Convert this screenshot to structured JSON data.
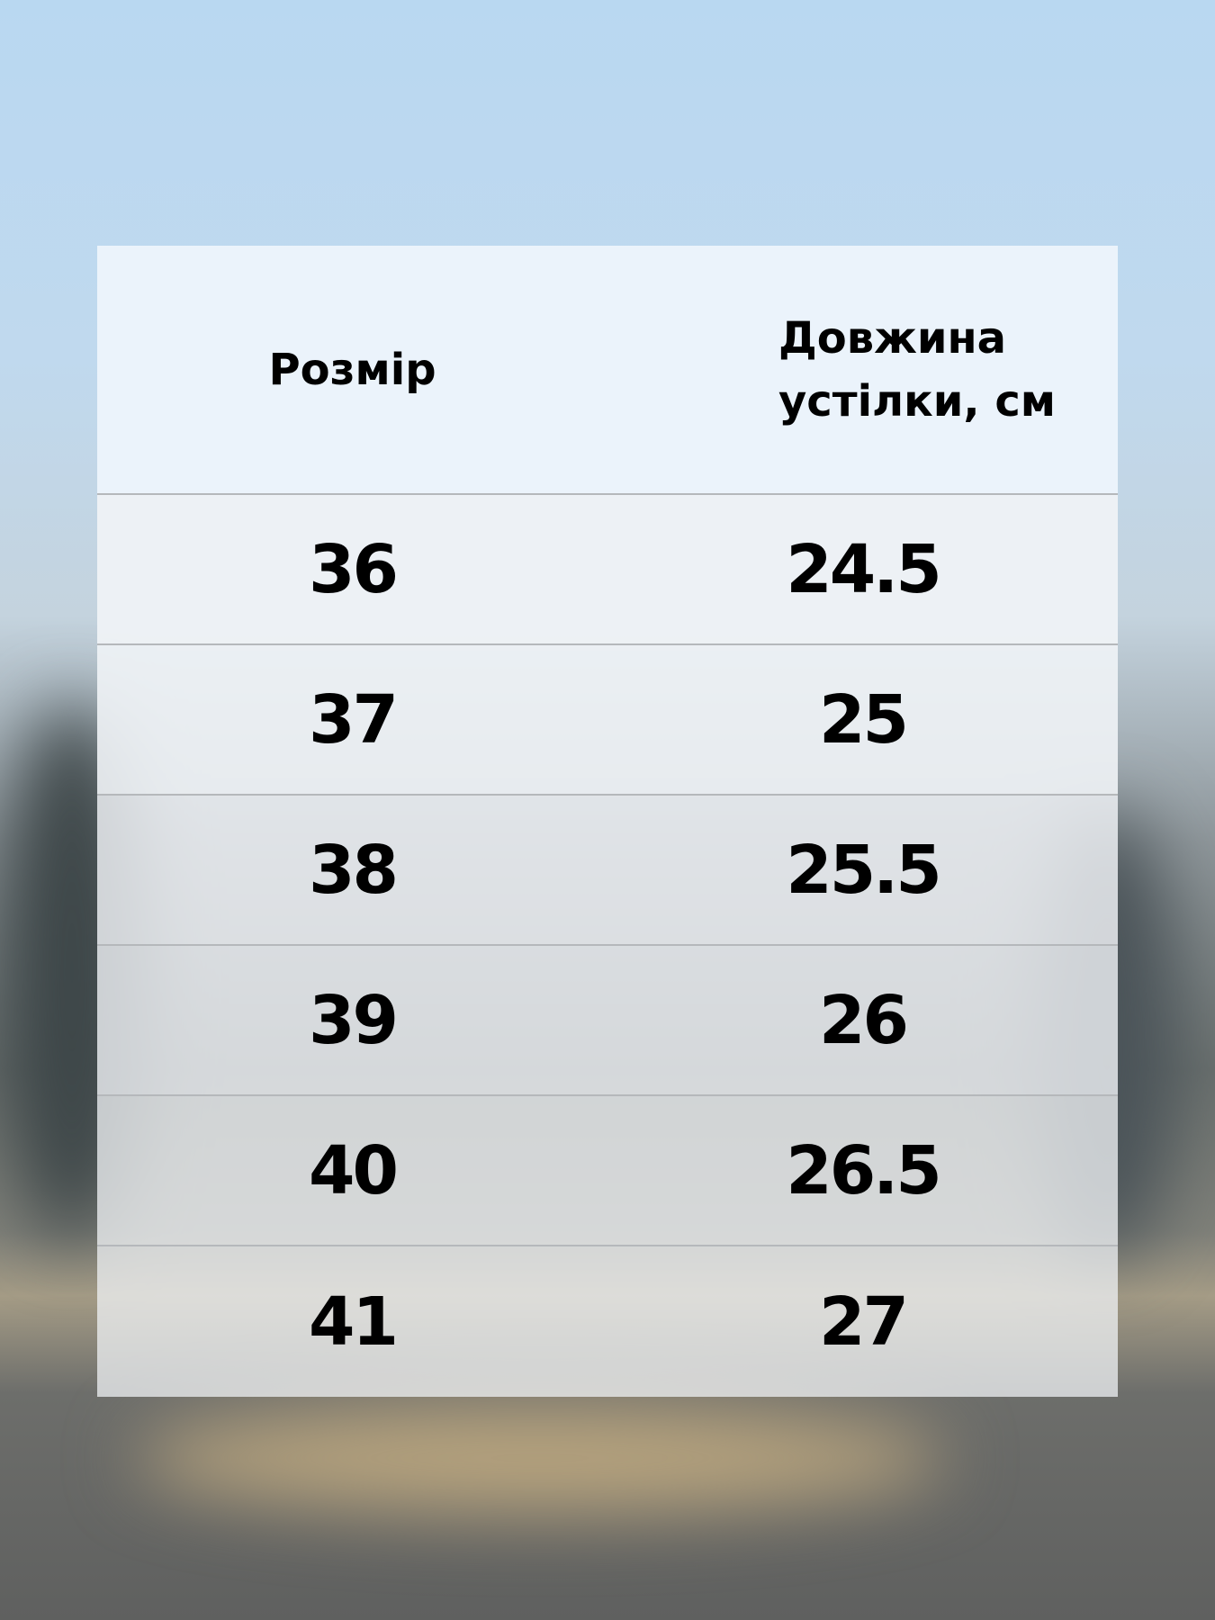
{
  "table": {
    "headers": [
      "Розмір",
      "Довжина устілки, см"
    ],
    "rows": [
      [
        "36",
        "24.5"
      ],
      [
        "37",
        "25"
      ],
      [
        "38",
        "25.5"
      ],
      [
        "39",
        "26"
      ],
      [
        "40",
        "26.5"
      ],
      [
        "41",
        "27"
      ]
    ]
  },
  "colors": {
    "header_bg": "#ecf4fb",
    "divider": "#b5b8bb",
    "text": "#000000"
  }
}
